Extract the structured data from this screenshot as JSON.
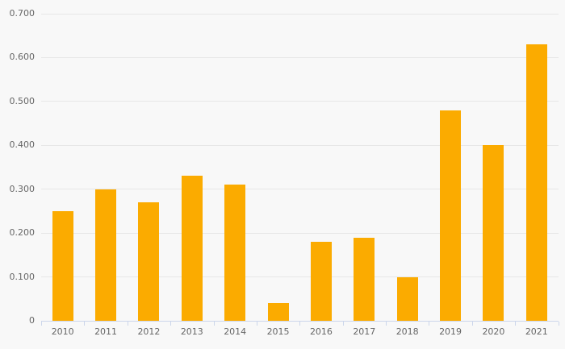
{
  "chart_data": {
    "type": "bar",
    "title": "",
    "xlabel": "",
    "ylabel": "",
    "categories": [
      "2010",
      "2011",
      "2012",
      "2013",
      "2014",
      "2015",
      "2016",
      "2017",
      "2018",
      "2019",
      "2020",
      "2021"
    ],
    "values": [
      0.25,
      0.3,
      0.27,
      0.33,
      0.31,
      0.04,
      0.18,
      0.19,
      0.1,
      0.48,
      0.4,
      0.63
    ],
    "ylim": [
      0,
      0.7
    ],
    "ytick_interval": 0.1,
    "yticks": [
      0,
      0.1,
      0.2,
      0.3,
      0.4,
      0.5,
      0.6,
      0.7
    ],
    "ytick_labels": [
      "0",
      "0.100",
      "0.200",
      "0.300",
      "0.400",
      "0.500",
      "0.600",
      "0.700"
    ],
    "grid": true,
    "legend": false,
    "colors": {
      "bar": "#fbab00",
      "background": "#f8f8f8",
      "gridline": "#e7e7e7",
      "axis_line": "#ccd6eb",
      "label_text": "#666666"
    }
  }
}
